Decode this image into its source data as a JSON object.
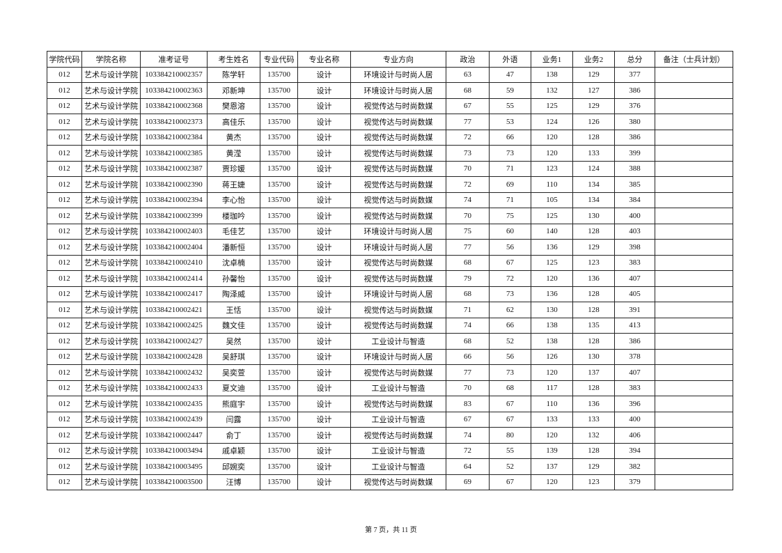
{
  "table": {
    "header": [
      "学院代码",
      "学院名称",
      "准考证号",
      "考生姓名",
      "专业代码",
      "专业名称",
      "专业方向",
      "政治",
      "外语",
      "业务1",
      "业务2",
      "总分",
      "备注（士兵计划）"
    ],
    "rows": [
      [
        "012",
        "艺术与设计学院",
        "103384210002357",
        "陈学轩",
        "135700",
        "设计",
        "环境设计与时尚人居",
        63,
        47,
        138,
        129,
        377
      ],
      [
        "012",
        "艺术与设计学院",
        "103384210002363",
        "邓新坤",
        "135700",
        "设计",
        "环境设计与时尚人居",
        68,
        59,
        132,
        127,
        386
      ],
      [
        "012",
        "艺术与设计学院",
        "103384210002368",
        "樊恩溶",
        "135700",
        "设计",
        "视觉传达与时尚数媒",
        67,
        55,
        125,
        129,
        376
      ],
      [
        "012",
        "艺术与设计学院",
        "103384210002373",
        "高佳乐",
        "135700",
        "设计",
        "视觉传达与时尚数媒",
        77,
        53,
        124,
        126,
        380
      ],
      [
        "012",
        "艺术与设计学院",
        "103384210002384",
        "黄杰",
        "135700",
        "设计",
        "视觉传达与时尚数媒",
        72,
        66,
        120,
        128,
        386
      ],
      [
        "012",
        "艺术与设计学院",
        "103384210002385",
        "黄滢",
        "135700",
        "设计",
        "视觉传达与时尚数媒",
        73,
        73,
        120,
        133,
        399
      ],
      [
        "012",
        "艺术与设计学院",
        "103384210002387",
        "贾珍媛",
        "135700",
        "设计",
        "视觉传达与时尚数媒",
        70,
        71,
        123,
        124,
        388
      ],
      [
        "012",
        "艺术与设计学院",
        "103384210002390",
        "蒋王婕",
        "135700",
        "设计",
        "视觉传达与时尚数媒",
        72,
        69,
        110,
        134,
        385
      ],
      [
        "012",
        "艺术与设计学院",
        "103384210002394",
        "李心怡",
        "135700",
        "设计",
        "视觉传达与时尚数媒",
        74,
        71,
        105,
        134,
        384
      ],
      [
        "012",
        "艺术与设计学院",
        "103384210002399",
        "楼珈吟",
        "135700",
        "设计",
        "视觉传达与时尚数媒",
        70,
        75,
        125,
        130,
        400
      ],
      [
        "012",
        "艺术与设计学院",
        "103384210002403",
        "毛佳艺",
        "135700",
        "设计",
        "环境设计与时尚人居",
        75,
        60,
        140,
        128,
        403
      ],
      [
        "012",
        "艺术与设计学院",
        "103384210002404",
        "潘新恒",
        "135700",
        "设计",
        "环境设计与时尚人居",
        77,
        56,
        136,
        129,
        398
      ],
      [
        "012",
        "艺术与设计学院",
        "103384210002410",
        "沈卓楠",
        "135700",
        "设计",
        "视觉传达与时尚数媒",
        68,
        67,
        125,
        123,
        383
      ],
      [
        "012",
        "艺术与设计学院",
        "103384210002414",
        "孙馨怡",
        "135700",
        "设计",
        "视觉传达与时尚数媒",
        79,
        72,
        120,
        136,
        407
      ],
      [
        "012",
        "艺术与设计学院",
        "103384210002417",
        "陶泽威",
        "135700",
        "设计",
        "环境设计与时尚人居",
        68,
        73,
        136,
        128,
        405
      ],
      [
        "012",
        "艺术与设计学院",
        "103384210002421",
        "王恬",
        "135700",
        "设计",
        "视觉传达与时尚数媒",
        71,
        62,
        130,
        128,
        391
      ],
      [
        "012",
        "艺术与设计学院",
        "103384210002425",
        "魏文佳",
        "135700",
        "设计",
        "视觉传达与时尚数媒",
        74,
        66,
        138,
        135,
        413
      ],
      [
        "012",
        "艺术与设计学院",
        "103384210002427",
        "吴然",
        "135700",
        "设计",
        "工业设计与智造",
        68,
        52,
        138,
        128,
        386
      ],
      [
        "012",
        "艺术与设计学院",
        "103384210002428",
        "吴舒琪",
        "135700",
        "设计",
        "环境设计与时尚人居",
        66,
        56,
        126,
        130,
        378
      ],
      [
        "012",
        "艺术与设计学院",
        "103384210002432",
        "吴奕萱",
        "135700",
        "设计",
        "视觉传达与时尚数媒",
        77,
        73,
        120,
        137,
        407
      ],
      [
        "012",
        "艺术与设计学院",
        "103384210002433",
        "夏文迪",
        "135700",
        "设计",
        "工业设计与智造",
        70,
        68,
        117,
        128,
        383
      ],
      [
        "012",
        "艺术与设计学院",
        "103384210002435",
        "熊庭宇",
        "135700",
        "设计",
        "视觉传达与时尚数媒",
        83,
        67,
        110,
        136,
        396
      ],
      [
        "012",
        "艺术与设计学院",
        "103384210002439",
        "闫露",
        "135700",
        "设计",
        "工业设计与智造",
        67,
        67,
        133,
        133,
        400
      ],
      [
        "012",
        "艺术与设计学院",
        "103384210002447",
        "俞丁",
        "135700",
        "设计",
        "视觉传达与时尚数媒",
        74,
        80,
        120,
        132,
        406
      ],
      [
        "012",
        "艺术与设计学院",
        "103384210003494",
        "戚卓颖",
        "135700",
        "设计",
        "工业设计与智造",
        72,
        55,
        139,
        128,
        394
      ],
      [
        "012",
        "艺术与设计学院",
        "103384210003495",
        "邱婉奕",
        "135700",
        "设计",
        "工业设计与智造",
        64,
        52,
        137,
        129,
        382
      ],
      [
        "012",
        "艺术与设计学院",
        "103384210003500",
        "汪博",
        "135700",
        "设计",
        "视觉传达与时尚数媒",
        69,
        67,
        120,
        123,
        379
      ]
    ]
  },
  "footer": "第 7 页，共 11 页"
}
